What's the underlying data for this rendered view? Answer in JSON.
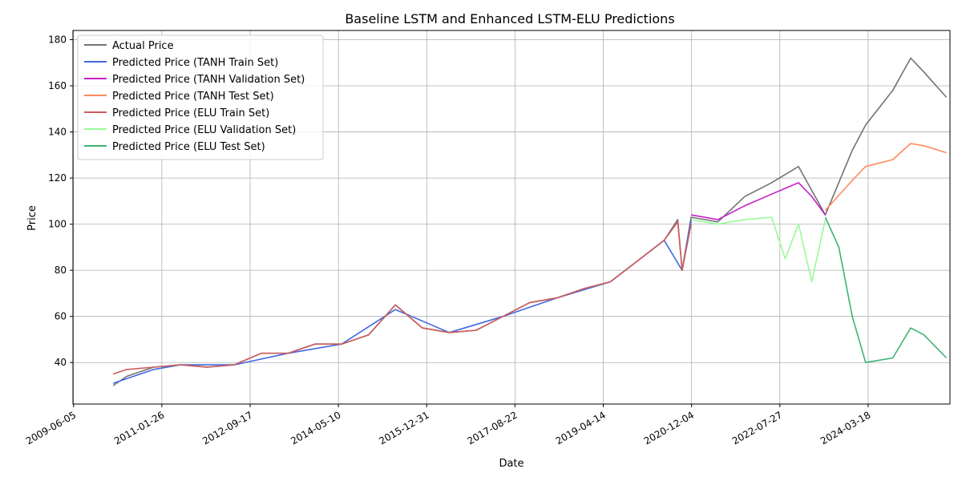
{
  "chart_data": {
    "type": "line",
    "title": "Baseline LSTM and Enhanced LSTM-ELU Predictions",
    "xlabel": "Date",
    "ylabel": "Price",
    "x_ticks": [
      "2009-06-05",
      "2011-01-26",
      "2012-09-17",
      "2014-05-10",
      "2015-12-31",
      "2017-08-22",
      "2019-04-14",
      "2020-12-04",
      "2022-07-27",
      "2024-03-18"
    ],
    "xlim": [
      "2009-06-01",
      "2025-09-25"
    ],
    "ylim": [
      22,
      184
    ],
    "y_ticks": [
      40,
      60,
      80,
      100,
      120,
      140,
      160,
      180
    ],
    "grid": true,
    "legend_position": "top-left",
    "series": [
      {
        "name": "Actual Price",
        "color": "#737373",
        "points": [
          [
            "2010-03-01",
            30
          ],
          [
            "2010-06-01",
            34
          ],
          [
            "2010-12-01",
            38
          ],
          [
            "2011-06-01",
            39
          ],
          [
            "2011-12-01",
            38
          ],
          [
            "2012-06-01",
            39
          ],
          [
            "2012-12-01",
            44
          ],
          [
            "2013-06-01",
            44
          ],
          [
            "2013-12-01",
            48
          ],
          [
            "2014-06-01",
            48
          ],
          [
            "2014-12-01",
            52
          ],
          [
            "2015-06-01",
            65
          ],
          [
            "2015-12-01",
            55
          ],
          [
            "2016-06-01",
            53
          ],
          [
            "2016-12-01",
            54
          ],
          [
            "2017-06-01",
            60
          ],
          [
            "2017-12-01",
            66
          ],
          [
            "2018-06-01",
            68
          ],
          [
            "2018-12-01",
            72
          ],
          [
            "2019-06-01",
            75
          ],
          [
            "2019-12-01",
            84
          ],
          [
            "2020-06-01",
            93
          ],
          [
            "2020-09-01",
            102
          ],
          [
            "2020-10-01",
            80
          ],
          [
            "2020-12-01",
            103
          ],
          [
            "2021-06-01",
            101
          ],
          [
            "2021-12-01",
            112
          ],
          [
            "2022-06-01",
            118
          ],
          [
            "2022-12-01",
            125
          ],
          [
            "2023-06-01",
            104
          ],
          [
            "2023-12-01",
            132
          ],
          [
            "2024-03-01",
            143
          ],
          [
            "2024-09-01",
            158
          ],
          [
            "2025-01-01",
            172
          ],
          [
            "2025-04-01",
            166
          ],
          [
            "2025-09-01",
            155
          ]
        ]
      },
      {
        "name": "Predicted Price (TANH Train Set)",
        "color": "#4169e1",
        "points": [
          [
            "2010-03-01",
            31
          ],
          [
            "2010-06-01",
            33
          ],
          [
            "2010-12-01",
            37
          ],
          [
            "2011-06-01",
            39
          ],
          [
            "2012-06-01",
            39
          ],
          [
            "2013-06-01",
            44
          ],
          [
            "2014-06-01",
            48
          ],
          [
            "2015-06-01",
            63
          ],
          [
            "2016-06-01",
            53
          ],
          [
            "2017-06-01",
            60
          ],
          [
            "2018-06-01",
            68
          ],
          [
            "2019-06-01",
            75
          ],
          [
            "2019-12-01",
            84
          ],
          [
            "2020-06-01",
            93
          ],
          [
            "2020-10-01",
            80
          ],
          [
            "2020-12-01",
            102
          ]
        ]
      },
      {
        "name": "Predicted Price (TANH Validation Set)",
        "color": "#c71fc8",
        "points": [
          [
            "2020-12-01",
            104
          ],
          [
            "2021-06-01",
            102
          ],
          [
            "2021-12-01",
            108
          ],
          [
            "2022-06-01",
            113
          ],
          [
            "2022-12-01",
            118
          ],
          [
            "2023-03-01",
            112
          ],
          [
            "2023-06-01",
            104
          ]
        ]
      },
      {
        "name": "Predicted Price (TANH Test Set)",
        "color": "#ff8a5b",
        "points": [
          [
            "2023-06-01",
            106
          ],
          [
            "2023-12-01",
            119
          ],
          [
            "2024-03-01",
            125
          ],
          [
            "2024-09-01",
            128
          ],
          [
            "2025-01-01",
            135
          ],
          [
            "2025-04-01",
            134
          ],
          [
            "2025-09-01",
            131
          ]
        ]
      },
      {
        "name": "Predicted Price (ELU Train Set)",
        "color": "#cd5c5c",
        "points": [
          [
            "2010-03-01",
            35
          ],
          [
            "2010-06-01",
            37
          ],
          [
            "2010-12-01",
            38
          ],
          [
            "2011-06-01",
            39
          ],
          [
            "2011-12-01",
            38
          ],
          [
            "2012-06-01",
            39
          ],
          [
            "2012-12-01",
            44
          ],
          [
            "2013-06-01",
            44
          ],
          [
            "2013-12-01",
            48
          ],
          [
            "2014-06-01",
            48
          ],
          [
            "2014-12-01",
            52
          ],
          [
            "2015-06-01",
            65
          ],
          [
            "2015-12-01",
            55
          ],
          [
            "2016-06-01",
            53
          ],
          [
            "2016-12-01",
            54
          ],
          [
            "2017-06-01",
            60
          ],
          [
            "2017-12-01",
            66
          ],
          [
            "2018-06-01",
            68
          ],
          [
            "2018-12-01",
            72
          ],
          [
            "2019-06-01",
            75
          ],
          [
            "2019-12-01",
            84
          ],
          [
            "2020-06-01",
            93
          ],
          [
            "2020-09-01",
            101
          ],
          [
            "2020-10-01",
            80
          ],
          [
            "2020-12-01",
            100
          ]
        ]
      },
      {
        "name": "Predicted Price (ELU Validation Set)",
        "color": "#98fb98",
        "points": [
          [
            "2020-12-01",
            102
          ],
          [
            "2021-06-01",
            100
          ],
          [
            "2021-12-01",
            102
          ],
          [
            "2022-06-01",
            103
          ],
          [
            "2022-09-01",
            85
          ],
          [
            "2022-12-01",
            100
          ],
          [
            "2023-03-01",
            75
          ],
          [
            "2023-06-01",
            102
          ]
        ]
      },
      {
        "name": "Predicted Price (ELU Test Set)",
        "color": "#3cb371",
        "points": [
          [
            "2023-06-01",
            103
          ],
          [
            "2023-09-01",
            90
          ],
          [
            "2023-12-01",
            60
          ],
          [
            "2024-03-01",
            40
          ],
          [
            "2024-09-01",
            42
          ],
          [
            "2025-01-01",
            55
          ],
          [
            "2025-04-01",
            52
          ],
          [
            "2025-09-01",
            42
          ]
        ]
      }
    ]
  }
}
